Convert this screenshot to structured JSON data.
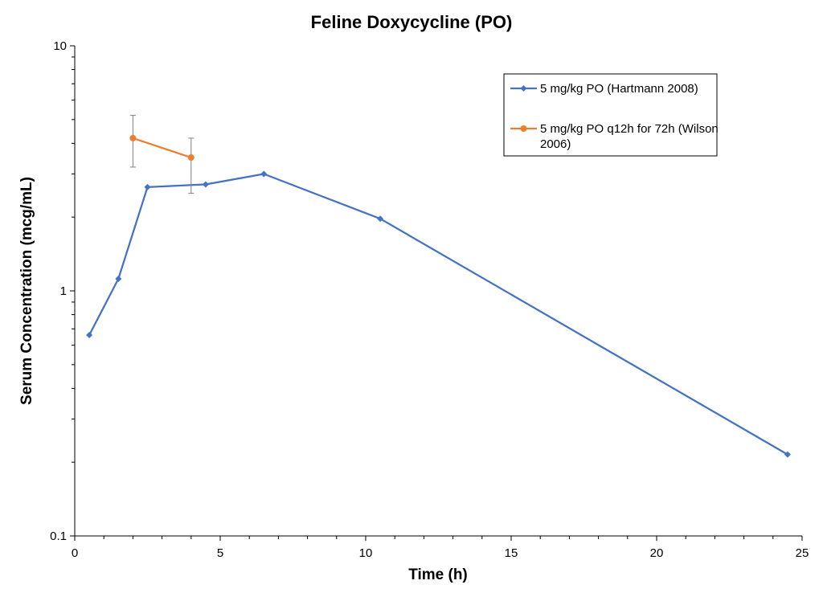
{
  "chart_data": {
    "type": "line",
    "title": "Feline Doxycycline (PO)",
    "xlabel": "Time (h)",
    "ylabel": "Serum Concentration (mcg/mL)",
    "xlim": [
      0,
      25
    ],
    "ylim": [
      0.1,
      10
    ],
    "y_scale": "log",
    "x_ticks": [
      0,
      5,
      10,
      15,
      20,
      25
    ],
    "x_tick_labels": [
      "0",
      "5",
      "10",
      "15",
      "20",
      "25"
    ],
    "y_ticks": [
      0.1,
      1,
      10
    ],
    "y_tick_labels": [
      "0.1",
      "1",
      "10"
    ],
    "grid": false,
    "legend_position": "top-right",
    "series": [
      {
        "name": "5 mg/kg PO (Hartmann 2008)",
        "color": "#4472C4",
        "marker": "diamond",
        "x": [
          0.5,
          1.5,
          2.5,
          4.5,
          6.5,
          10.5,
          24.5
        ],
        "y": [
          0.66,
          1.12,
          2.65,
          2.72,
          3.0,
          1.97,
          0.215
        ]
      },
      {
        "name": "5 mg/kg PO q12h for 72h (Wilson 2006)",
        "legend_lines": [
          "5 mg/kg PO q12h for 72h (Wilson",
          "2006)"
        ],
        "color": "#ED7D31",
        "marker": "circle",
        "x": [
          2,
          4
        ],
        "y": [
          4.2,
          3.5
        ],
        "error_low": [
          3.2,
          2.5
        ],
        "error_high": [
          5.2,
          4.2
        ]
      }
    ]
  }
}
